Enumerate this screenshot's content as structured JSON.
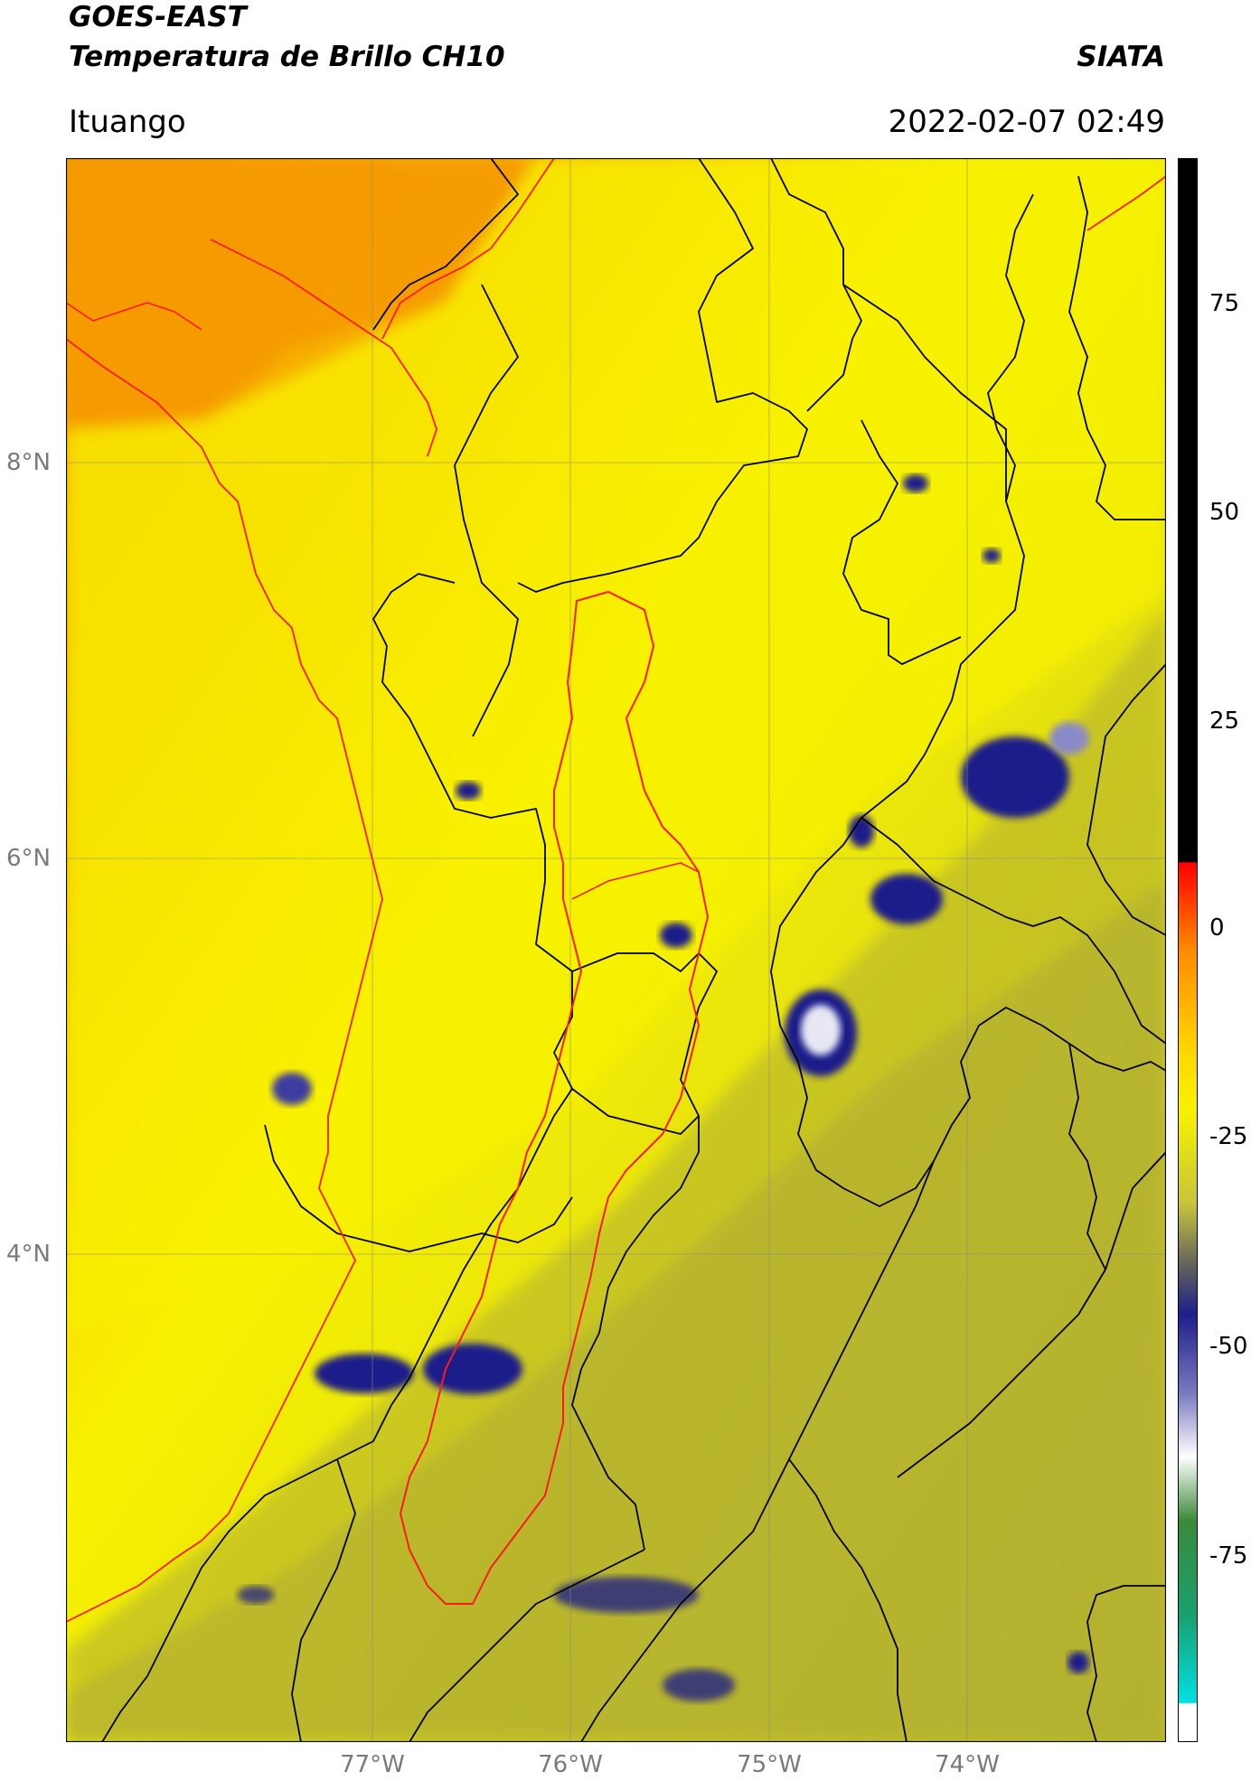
{
  "header": {
    "title_line1": "GOES-EAST",
    "title_line2": "Temperatura de Brillo CH10",
    "brand": "SIATA",
    "region": "Ituango",
    "datetime": "2022-02-07 02:49"
  },
  "map": {
    "lat_labels": [
      "8°N",
      "6°N",
      "4°N"
    ],
    "lon_labels": [
      "77°W",
      "76°W",
      "75°W",
      "74°W"
    ],
    "colors": {
      "warm_orange": "#f59a00",
      "yellow": "#f8f200",
      "olive": "#bdbb2a",
      "cold_blue": "#1f1f8a",
      "boundary_red": "#ff1a1a",
      "boundary_black": "#000000",
      "gridline": "#8a8a8a"
    }
  },
  "colorbar": {
    "tick_labels": [
      "75",
      "50",
      "25",
      "0",
      "-25",
      "-50",
      "-75"
    ],
    "range_min": -90,
    "range_max": 90
  }
}
